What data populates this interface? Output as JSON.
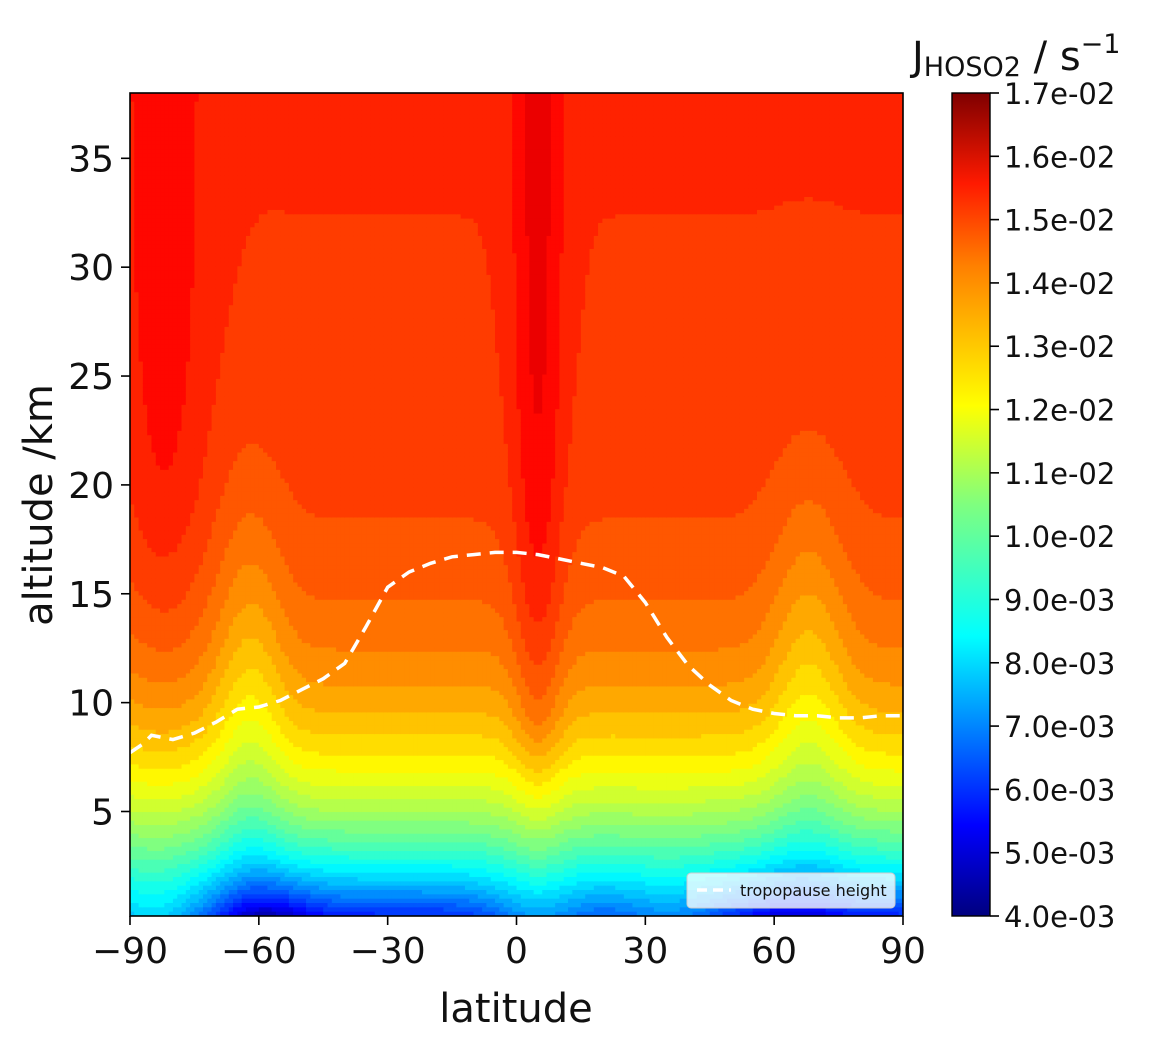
{
  "chart_data": {
    "type": "heatmap",
    "title": "",
    "xlabel": "latitude",
    "ylabel": "altitude /km",
    "colorbar_label": {
      "symbol": "J",
      "subscript": "HOSO2",
      "unit": " / s",
      "exponent": "−1"
    },
    "xlim": [
      -90,
      90
    ],
    "ylim": [
      0.2,
      38
    ],
    "x_ticks": [
      -90,
      -60,
      -30,
      0,
      30,
      60,
      90
    ],
    "x_tick_labels": [
      "−90",
      "−60",
      "−30",
      "0",
      "30",
      "60",
      "90"
    ],
    "y_ticks": [
      5,
      10,
      15,
      20,
      25,
      30,
      35
    ],
    "y_tick_labels": [
      "5",
      "10",
      "15",
      "20",
      "25",
      "30",
      "35"
    ],
    "colorbar": {
      "min": 0.004,
      "max": 0.017,
      "ticks": [
        0.017,
        0.016,
        0.015,
        0.014,
        0.013,
        0.012,
        0.011,
        0.01,
        0.009,
        0.008,
        0.007,
        0.006,
        0.005,
        0.004
      ],
      "tick_labels": [
        "1.7e-02",
        "1.6e-02",
        "1.5e-02",
        "1.4e-02",
        "1.3e-02",
        "1.2e-02",
        "1.1e-02",
        "1.0e-02",
        "9.0e-03",
        "8.0e-03",
        "7.0e-03",
        "6.0e-03",
        "5.0e-03",
        "4.0e-03"
      ],
      "colormap": "jet"
    },
    "legend": {
      "position": "bottom-right",
      "entries": [
        "tropopause height"
      ]
    },
    "series": [
      {
        "name": "tropopause height",
        "style": "dashed",
        "color": "#ffffff",
        "x": [
          -90,
          -87,
          -85,
          -80,
          -75,
          -70,
          -65,
          -60,
          -55,
          -50,
          -45,
          -40,
          -35,
          -30,
          -25,
          -20,
          -15,
          -10,
          -5,
          0,
          5,
          10,
          15,
          20,
          25,
          30,
          35,
          40,
          45,
          50,
          55,
          60,
          65,
          70,
          75,
          80,
          85,
          90
        ],
        "y": [
          7.7,
          8.1,
          8.5,
          8.3,
          8.6,
          9.1,
          9.7,
          9.8,
          10.1,
          10.6,
          11.1,
          11.8,
          13.5,
          15.3,
          16.0,
          16.4,
          16.7,
          16.8,
          16.9,
          16.9,
          16.8,
          16.6,
          16.4,
          16.2,
          15.8,
          14.6,
          13.0,
          11.7,
          10.8,
          10.1,
          9.7,
          9.5,
          9.4,
          9.4,
          9.3,
          9.3,
          9.4,
          9.4
        ]
      }
    ]
  }
}
